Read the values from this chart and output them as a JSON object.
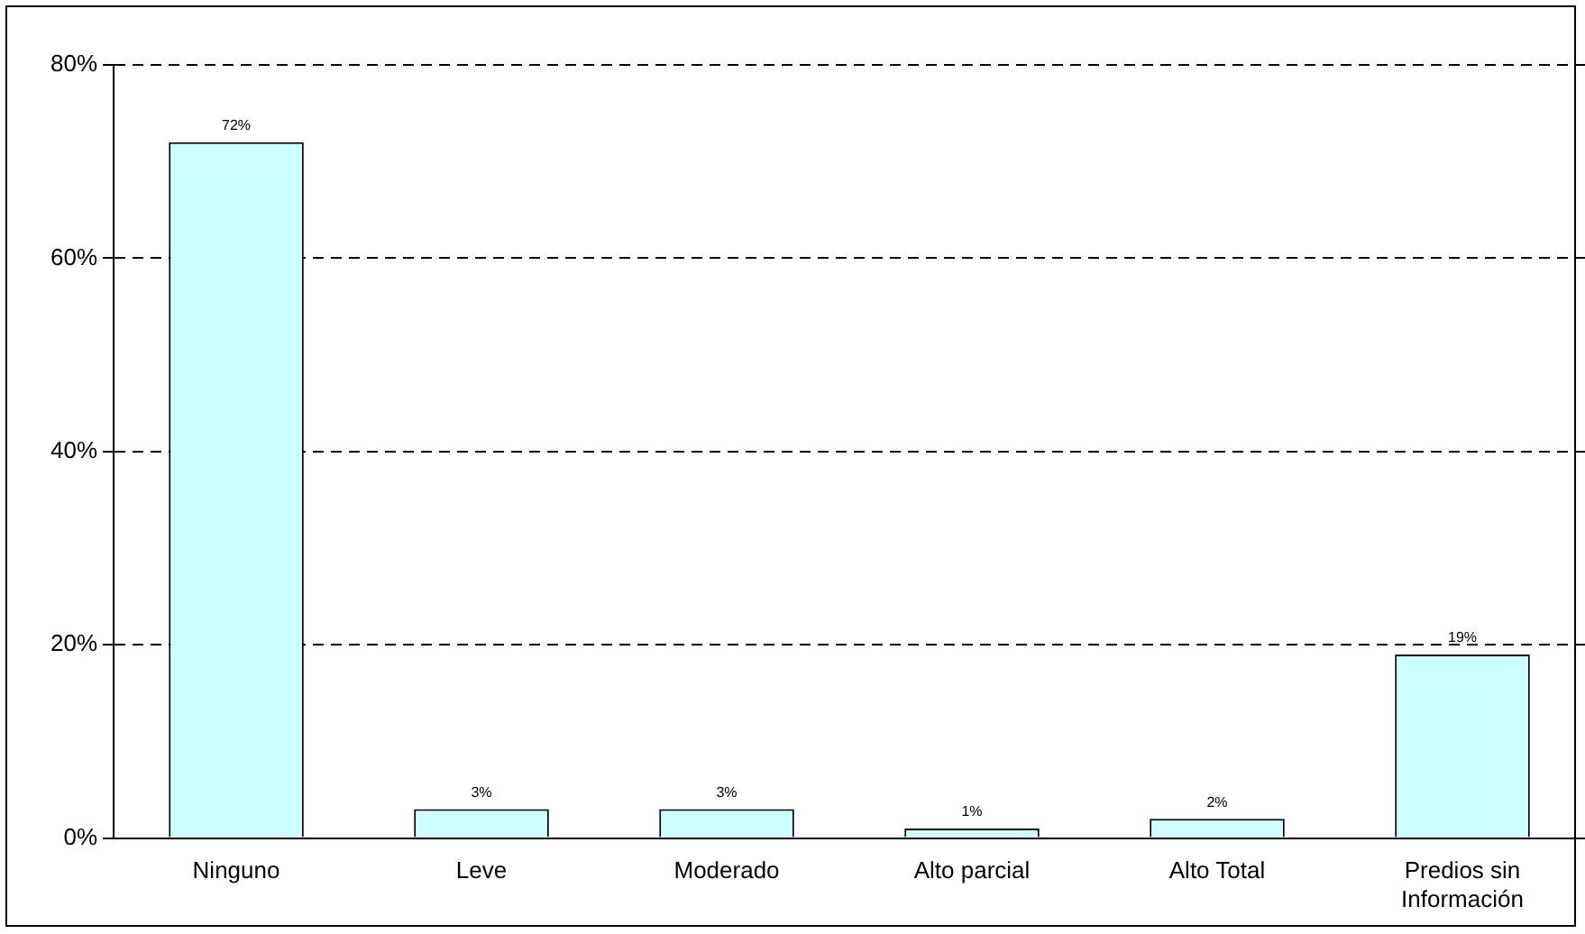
{
  "chart_data": {
    "type": "bar",
    "categories": [
      "Ninguno",
      "Leve",
      "Moderado",
      "Alto parcial",
      "Alto Total",
      "Predios sin Información"
    ],
    "values": [
      72,
      3,
      3,
      1,
      2,
      19
    ],
    "value_labels": [
      "72%",
      "3%",
      "3%",
      "1%",
      "2%",
      "19%"
    ],
    "color": "#ccffff",
    "ylim": [
      0,
      80
    ],
    "yticks": [
      {
        "value": 0,
        "label": "0%"
      },
      {
        "value": 20,
        "label": "20%"
      },
      {
        "value": 40,
        "label": "40%"
      },
      {
        "value": 60,
        "label": "60%"
      },
      {
        "value": 80,
        "label": "80%"
      }
    ],
    "grid": "y",
    "line_style": "dashed",
    "legend": false
  }
}
